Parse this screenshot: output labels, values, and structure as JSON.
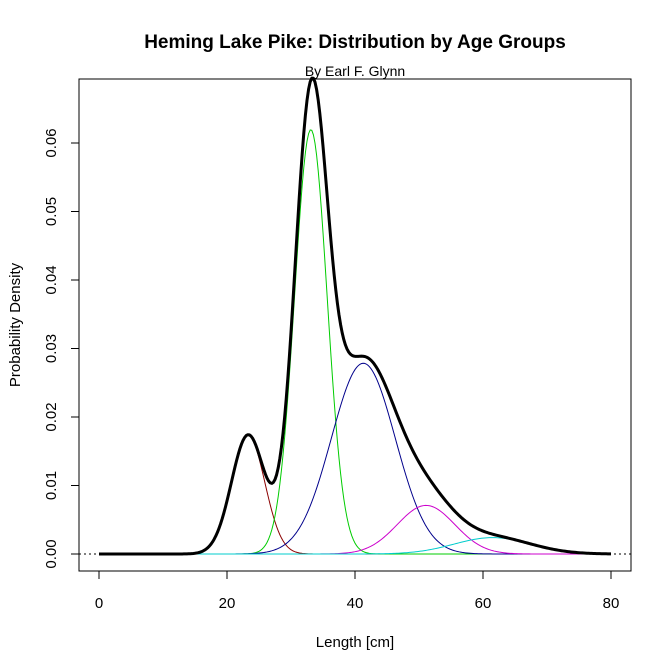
{
  "chart_data": {
    "type": "line",
    "title": "Heming Lake Pike: Distribution by Age Groups",
    "subtitle": "By Earl F. Glynn",
    "xlabel": "Length [cm]",
    "ylabel": "Probability Density",
    "xlim": [
      0,
      80
    ],
    "ylim": [
      0,
      0.065
    ],
    "x_ticks": [
      "0",
      "20",
      "40",
      "60",
      "80"
    ],
    "y_ticks": [
      "0.00",
      "0.01",
      "0.02",
      "0.03",
      "0.04",
      "0.05",
      "0.06"
    ],
    "components": [
      {
        "color": "#8b0000",
        "mean": 23.3,
        "sd": 2.6,
        "weight": 0.113
      },
      {
        "color": "#00cc00",
        "mean": 33.1,
        "sd": 2.55,
        "weight": 0.396
      },
      {
        "color": "#00008b",
        "mean": 41.3,
        "sd": 5.0,
        "weight": 0.349
      },
      {
        "color": "#cc00cc",
        "mean": 51.1,
        "sd": 4.5,
        "weight": 0.08
      },
      {
        "color": "#00cccc",
        "mean": 61.5,
        "sd": 6.0,
        "weight": 0.036
      }
    ],
    "total": {
      "color": "#000000"
    },
    "x_range_curves": [
      0,
      80
    ],
    "baseline": "dotted",
    "grid": false
  }
}
